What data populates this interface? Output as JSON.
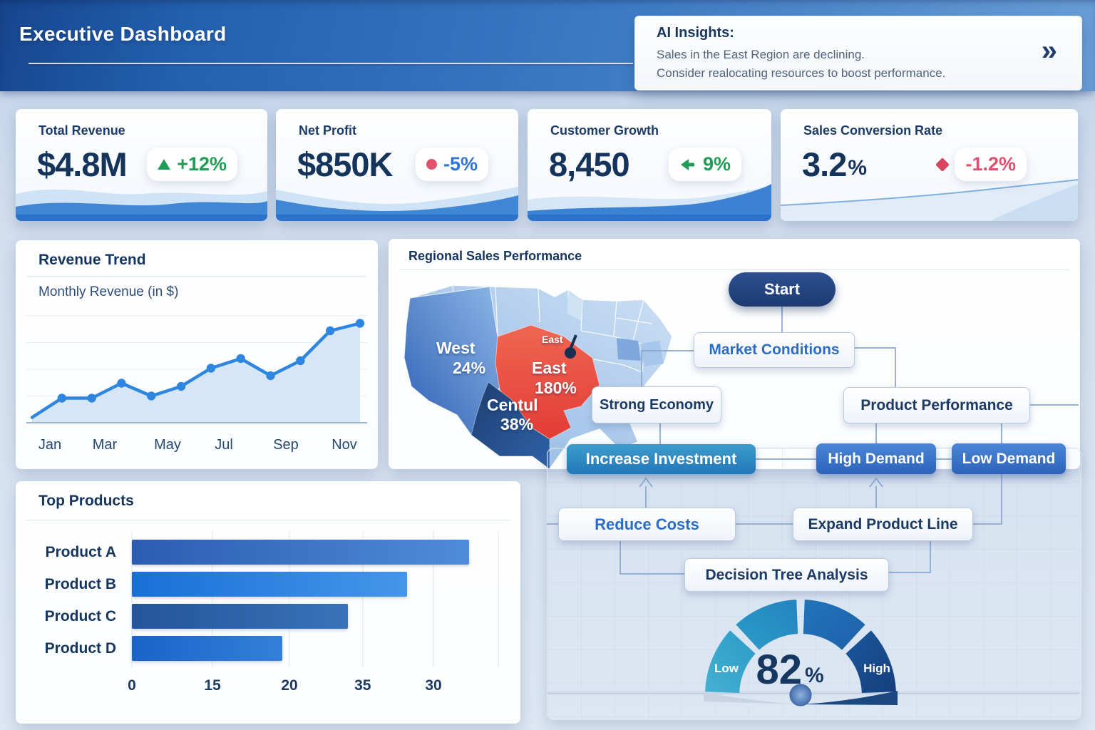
{
  "header": {
    "title": "Executive Dashboard"
  },
  "ai_insights": {
    "title": "AI Insights:",
    "line1": "Sales in the East Region are declining.",
    "line2": "Consider realocating resources to boost performance.",
    "chevron": "»"
  },
  "kpis": [
    {
      "title": "Total Revenue",
      "value": "$4.8M",
      "suffix": "",
      "delta": "+12%"
    },
    {
      "title": "Net Profit",
      "value": "$850K",
      "suffix": "",
      "delta": "-5%"
    },
    {
      "title": "Customer Growth",
      "value": "8,450",
      "suffix": "",
      "delta": "9%"
    },
    {
      "title": "Sales Conversion Rate",
      "value": "3.2",
      "suffix": "%",
      "delta": "-1.2%"
    }
  ],
  "panels": {
    "revenue": {
      "title": "Revenue Trend",
      "subtitle": "Monthly Revenue (in $)"
    },
    "regional": {
      "title": "Regional Sales Performance"
    },
    "products": {
      "title": "Top Products"
    }
  },
  "map": {
    "pin_label": "East",
    "regions": [
      {
        "name": "West",
        "value": "24%"
      },
      {
        "name": "East",
        "value": "180%"
      },
      {
        "name": "Centul",
        "value": "38%"
      }
    ]
  },
  "flowchart": {
    "start": "Start",
    "market_conditions": "Market Conditions",
    "strong_economy": "Strong Economy",
    "product_performance": "Product Performance",
    "increase_investment": "Increase Investment",
    "high_demand": "High Demand",
    "low_demand": "Low Demand",
    "reduce_costs": "Reduce Costs",
    "expand_product_line": "Expand Product Line",
    "decision_tree": "Decision Tree Analysis"
  },
  "gauge": {
    "value": "82",
    "unit": "%",
    "low_label": "Low",
    "high_label": "High"
  },
  "chart_data": [
    {
      "type": "line",
      "title": "Revenue Trend",
      "ylabel": "Monthly Revenue (in $)",
      "x_labels": [
        "Jan",
        "Mar",
        "May",
        "Jul",
        "Sep",
        "Nov"
      ],
      "x_span_note": "12 monthly points Jan-Dec, labels every 2nd month",
      "values": [
        5,
        23,
        23,
        37,
        25,
        34,
        51,
        60,
        44,
        58,
        86,
        93
      ],
      "ylim": [
        0,
        100
      ],
      "grid": true,
      "line_color": "#2e86e0",
      "area_fill": "#d7e6f6"
    },
    {
      "type": "bar",
      "title": "Top Products",
      "orientation": "horizontal",
      "categories": [
        "Product A",
        "Product B",
        "Product C",
        "Product D"
      ],
      "values": [
        92,
        75,
        59,
        41
      ],
      "x_ticks": [
        "0",
        "15",
        "20",
        "35",
        "30"
      ],
      "xlim": [
        0,
        100
      ]
    },
    {
      "type": "gauge",
      "value": 82,
      "unit": "%",
      "range_labels": [
        "Low",
        "High"
      ],
      "segments": 4
    },
    {
      "type": "choropleth",
      "title": "Regional Sales Performance",
      "regions": [
        {
          "name": "West",
          "value": "24%",
          "color": "#3b74c9"
        },
        {
          "name": "East",
          "value": "180%",
          "color": "#e8473f"
        },
        {
          "name": "Centul",
          "value": "38%",
          "color": "#1e3f70"
        }
      ]
    }
  ],
  "colors": {
    "header_gradient_start": "#17458e",
    "header_gradient_end": "#6ba0d8",
    "navy": "#16355e",
    "green": "#1f9d55",
    "rose": "#e0506e",
    "delta_blue": "#2e75d6",
    "dot_red": "#e2526b",
    "accent_blue": "#2e86e0",
    "east_red": "#e8473f"
  }
}
